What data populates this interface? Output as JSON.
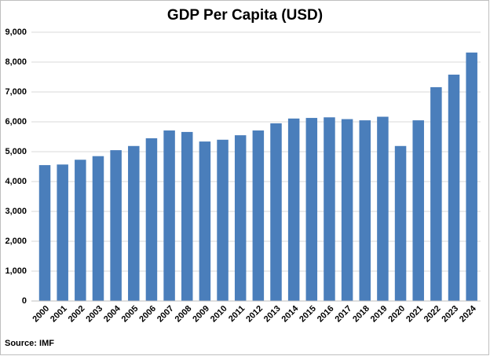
{
  "chart_data": {
    "type": "bar",
    "title": "GDP Per Capita (USD)",
    "source": "Source: IMF",
    "categories": [
      "2000",
      "2001",
      "2002",
      "2003",
      "2004",
      "2005",
      "2006",
      "2007",
      "2008",
      "2009",
      "2010",
      "2011",
      "2012",
      "2013",
      "2014",
      "2015",
      "2016",
      "2017",
      "2018",
      "2019",
      "2020",
      "2021",
      "2022",
      "2023",
      "2024"
    ],
    "values": [
      4550,
      4570,
      4730,
      4850,
      5050,
      5190,
      5450,
      5710,
      5660,
      5340,
      5400,
      5550,
      5710,
      5950,
      6110,
      6130,
      6150,
      6090,
      6050,
      6170,
      5190,
      6050,
      7160,
      7580,
      8320
    ],
    "color": "#4a7ebb",
    "ylim": [
      0,
      9000
    ],
    "yticks": [
      0,
      {
        "value": 1000,
        "label": "1,000"
      },
      {
        "value": 2000,
        "label": "2,000"
      },
      {
        "value": 3000,
        "label": "3,000"
      },
      {
        "value": 4000,
        "label": "4,000"
      },
      {
        "value": 5000,
        "label": "5,000"
      },
      {
        "value": 6000,
        "label": "6,000"
      },
      {
        "value": 7000,
        "label": "7,000"
      },
      {
        "value": 8000,
        "label": "8,000"
      },
      {
        "value": 9000,
        "label": "9,000"
      }
    ],
    "grid": true
  }
}
